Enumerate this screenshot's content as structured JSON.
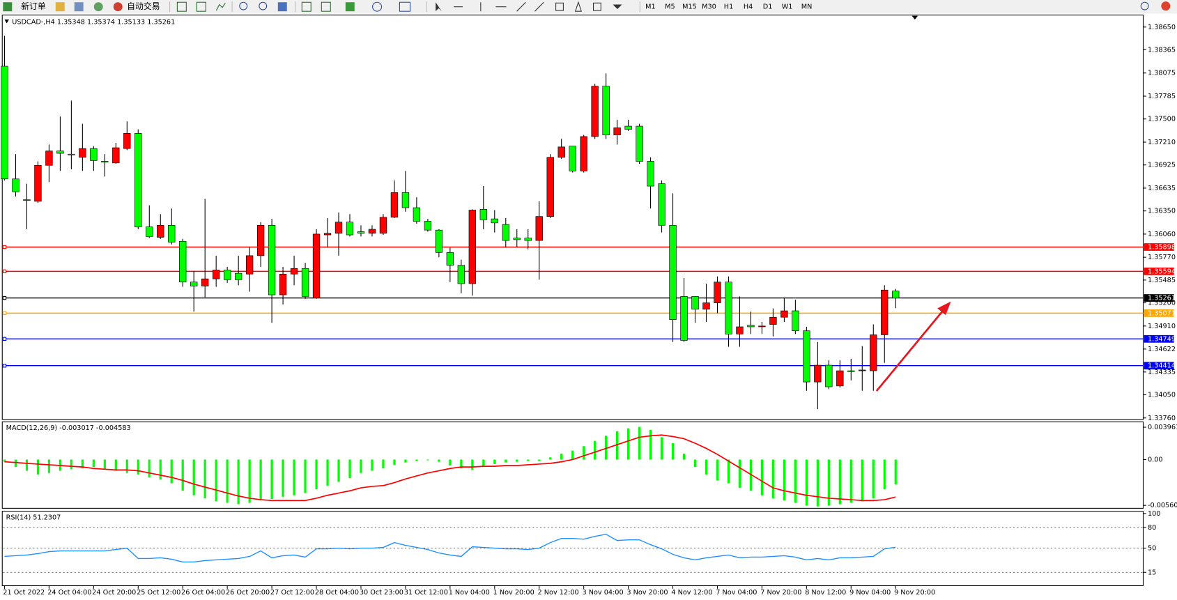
{
  "toolbar": {
    "buttons": [
      "新订单",
      "自动交易"
    ],
    "timeframes": [
      "M1",
      "M5",
      "M15",
      "M30",
      "H1",
      "H4",
      "D1",
      "W1",
      "MN"
    ]
  },
  "chart_data": [
    {
      "type": "candlestick",
      "title": "USDCAD-,H4 1.35348 1.35374 1.35133 1.35261",
      "categories": [
        "21 Oct 2022",
        null,
        null,
        null,
        "24 Oct 04:00",
        null,
        null,
        null,
        "24 Oct 20:00",
        null,
        null,
        null,
        "25 Oct 12:00",
        null,
        null,
        null,
        "26 Oct 04:00",
        null,
        null,
        null,
        "26 Oct 20:00",
        null,
        null,
        null,
        "27 Oct 12:00",
        null,
        null,
        null,
        "28 Oct 04:00",
        null,
        null,
        null,
        "30 Oct 23:00",
        null,
        null,
        null,
        "31 Oct 12:00",
        null,
        null,
        null,
        "1 Nov 04:00",
        null,
        null,
        null,
        "1 Nov 20:00",
        null,
        null,
        null,
        "2 Nov 12:00",
        null,
        null,
        null,
        "3 Nov 04:00",
        null,
        null,
        null,
        "3 Nov 20:00",
        null,
        null,
        null,
        "4 Nov 12:00",
        null,
        null,
        null,
        "7 Nov 04:00",
        null,
        null,
        null,
        "7 Nov 20:00",
        null,
        null,
        null,
        "8 Nov 12:00",
        null,
        null,
        null,
        "9 Nov 04:00",
        null,
        null,
        null,
        "9 Nov 20:00"
      ],
      "open": [
        1.3816,
        1.3675,
        1.3649,
        1.3647,
        1.3692,
        1.371,
        1.3706,
        1.3702,
        1.3713,
        1.3697,
        1.3695,
        1.3713,
        1.3732,
        1.3615,
        1.3602,
        1.3617,
        1.3597,
        1.3546,
        1.3541,
        1.355,
        1.3561,
        1.3557,
        1.3556,
        1.3579,
        1.3617,
        1.353,
        1.3556,
        1.3563,
        1.3526,
        1.3605,
        1.3607,
        1.3621,
        1.3609,
        1.3607,
        1.3607,
        1.3627,
        1.3658,
        1.3639,
        1.3622,
        1.3611,
        1.3583,
        1.3567,
        1.3544,
        1.3637,
        1.3625,
        1.3618,
        1.3601,
        1.3601,
        1.3598,
        1.3628,
        1.3702,
        1.3716,
        1.3685,
        1.3728,
        1.3791,
        1.373,
        1.3741,
        1.3741,
        1.3697,
        1.3669,
        1.3617,
        1.3528,
        1.3528,
        1.3512,
        1.352,
        1.3546,
        1.3481,
        1.3492,
        1.349,
        1.3493,
        1.3502,
        1.351,
        1.3485,
        1.3421,
        1.3442,
        1.3416,
        1.3435,
        1.3435,
        1.3435,
        1.348,
        1.35348
      ],
      "high": [
        1.3854,
        1.3706,
        1.3669,
        1.3697,
        1.3718,
        1.3753,
        1.3773,
        1.3744,
        1.3716,
        1.3706,
        1.372,
        1.3747,
        1.3737,
        1.3642,
        1.3631,
        1.3638,
        1.36,
        1.356,
        1.365,
        1.3579,
        1.3565,
        1.3579,
        1.359,
        1.3621,
        1.3625,
        1.3565,
        1.3579,
        1.357,
        1.3612,
        1.3626,
        1.3633,
        1.3631,
        1.3617,
        1.3617,
        1.3631,
        1.3673,
        1.3685,
        1.3652,
        1.3625,
        1.3612,
        1.3589,
        1.3574,
        1.3637,
        1.3666,
        1.3636,
        1.3626,
        1.3612,
        1.3612,
        1.3647,
        1.3706,
        1.3725,
        1.3716,
        1.373,
        1.3794,
        1.3807,
        1.3749,
        1.3749,
        1.3744,
        1.3702,
        1.3673,
        1.3657,
        1.3551,
        1.3528,
        1.3544,
        1.3553,
        1.3553,
        1.3528,
        1.3509,
        1.3496,
        1.3513,
        1.3526,
        1.3524,
        1.349,
        1.3471,
        1.3448,
        1.3448,
        1.345,
        1.3466,
        1.3493,
        1.3542,
        1.35374
      ],
      "low": [
        1.3673,
        1.3653,
        1.3612,
        1.3645,
        1.3671,
        1.3685,
        1.3687,
        1.3685,
        1.3685,
        1.3678,
        1.3694,
        1.3711,
        1.3612,
        1.3601,
        1.36,
        1.3593,
        1.354,
        1.3509,
        1.3527,
        1.354,
        1.3545,
        1.3542,
        1.3534,
        1.3565,
        1.3495,
        1.3518,
        1.3542,
        1.3525,
        1.3525,
        1.3589,
        1.3579,
        1.3603,
        1.3603,
        1.3603,
        1.3605,
        1.3626,
        1.3634,
        1.3619,
        1.3609,
        1.3577,
        1.3546,
        1.3532,
        1.3529,
        1.3612,
        1.3608,
        1.3589,
        1.359,
        1.3587,
        1.3549,
        1.3626,
        1.37,
        1.3683,
        1.3683,
        1.3725,
        1.3725,
        1.3718,
        1.3735,
        1.3694,
        1.3638,
        1.3608,
        1.3471,
        1.3471,
        1.3495,
        1.3496,
        1.3507,
        1.3465,
        1.3465,
        1.3481,
        1.3481,
        1.3478,
        1.3496,
        1.3481,
        1.341,
        1.3387,
        1.3412,
        1.3414,
        1.3423,
        1.341,
        1.341,
        1.3445,
        1.35133
      ],
      "close": [
        1.3675,
        1.3659,
        1.3648,
        1.3692,
        1.371,
        1.3707,
        1.3705,
        1.3713,
        1.3698,
        1.3696,
        1.3714,
        1.3732,
        1.3615,
        1.3603,
        1.3617,
        1.3596,
        1.3546,
        1.3541,
        1.355,
        1.3561,
        1.3549,
        1.3549,
        1.3579,
        1.3617,
        1.353,
        1.3556,
        1.3563,
        1.3528,
        1.3606,
        1.3607,
        1.3621,
        1.3605,
        1.3607,
        1.3612,
        1.3627,
        1.3658,
        1.3639,
        1.3622,
        1.3611,
        1.3583,
        1.3567,
        1.3544,
        1.3636,
        1.3624,
        1.362,
        1.3598,
        1.3599,
        1.3598,
        1.3628,
        1.3702,
        1.3715,
        1.3685,
        1.3728,
        1.3791,
        1.373,
        1.3739,
        1.3737,
        1.3697,
        1.3666,
        1.3617,
        1.3499,
        1.3473,
        1.3512,
        1.352,
        1.3546,
        1.3481,
        1.349,
        1.349,
        1.3491,
        1.3502,
        1.351,
        1.3485,
        1.3421,
        1.3442,
        1.3415,
        1.3435,
        1.3434,
        1.3436,
        1.348,
        1.3536,
        1.35261
      ],
      "up_color": "#ff0000",
      "down_color": "#00ff00",
      "ylim": [
        1.3374,
        1.388
      ],
      "yticks": [
        {
          "value": 1.3865,
          "label": "1.38650"
        },
        {
          "value": 1.38365,
          "label": "1.38365"
        },
        {
          "value": 1.38075,
          "label": "1.38075"
        },
        {
          "value": 1.37785,
          "label": "1.37785"
        },
        {
          "value": 1.375,
          "label": "1.37500"
        },
        {
          "value": 1.3721,
          "label": "1.37210"
        },
        {
          "value": 1.36925,
          "label": "1.36925"
        },
        {
          "value": 1.36635,
          "label": "1.36635"
        },
        {
          "value": 1.3635,
          "label": "1.36350"
        },
        {
          "value": 1.3606,
          "label": "1.36060"
        },
        {
          "value": 1.3577,
          "label": "1.35770"
        },
        {
          "value": 1.35485,
          "label": "1.35485"
        },
        {
          "value": 1.352,
          "label": "1.35200"
        },
        {
          "value": 1.3491,
          "label": "1.34910"
        },
        {
          "value": 1.34622,
          "label": "1.34622"
        },
        {
          "value": 1.34335,
          "label": "1.34335"
        },
        {
          "value": 1.3405,
          "label": "1.34050"
        },
        {
          "value": 1.3376,
          "label": "1.33760"
        }
      ],
      "hlines": [
        {
          "value": 1.35898,
          "color": "#ff0000"
        },
        {
          "value": 1.35594,
          "color": "#ff0000"
        },
        {
          "value": 1.35261,
          "color": "#000000"
        },
        {
          "value": 1.35071,
          "color": "#ffa500"
        },
        {
          "value": 1.34749,
          "color": "#0000ff"
        },
        {
          "value": 1.34414,
          "color": "#0000ff"
        }
      ]
    },
    {
      "type": "macd",
      "title": "MACD(12,26,9) -0.003017 -0.004583",
      "histogram": [
        -0.00027,
        -0.00091,
        -0.00137,
        -0.00182,
        -0.00164,
        -0.00137,
        -0.00118,
        -0.00109,
        -0.00091,
        -0.00118,
        -0.00137,
        -0.00164,
        -0.00182,
        -0.00218,
        -0.00246,
        -0.00291,
        -0.00382,
        -0.00437,
        -0.00473,
        -0.0051,
        -0.00528,
        -0.00546,
        -0.00528,
        -0.00501,
        -0.00482,
        -0.00455,
        -0.00437,
        -0.0041,
        -0.00364,
        -0.00319,
        -0.00273,
        -0.00228,
        -0.00164,
        -0.00137,
        -0.00109,
        -0.00064,
        -0.00036,
        -0.00018,
        -9e-05,
        -0.00027,
        -0.00073,
        -0.00109,
        -0.00127,
        -0.00091,
        -0.00055,
        -0.00036,
        -0.00027,
        -0.00018,
        -0.00018,
        0.00027,
        0.00073,
        0.00109,
        0.00164,
        0.00228,
        0.00291,
        0.00346,
        0.00382,
        0.004,
        0.00364,
        0.00273,
        0.002,
        0.00073,
        -0.00091,
        -0.00182,
        -0.00255,
        -0.00291,
        -0.00346,
        -0.00382,
        -0.00437,
        -0.00473,
        -0.00501,
        -0.00528,
        -0.00564,
        -0.00573,
        -0.00564,
        -0.00546,
        -0.00528,
        -0.0051,
        -0.00473,
        -0.00364,
        -0.003017
      ],
      "signal": [
        -0.00027,
        -0.00036,
        -0.00046,
        -0.00055,
        -0.00064,
        -0.00073,
        -0.00082,
        -0.00091,
        -0.00109,
        -0.00118,
        -0.00127,
        -0.00127,
        -0.00137,
        -0.00164,
        -0.00191,
        -0.00218,
        -0.00255,
        -0.003,
        -0.00337,
        -0.00373,
        -0.0041,
        -0.00446,
        -0.00473,
        -0.00491,
        -0.00501,
        -0.00501,
        -0.00501,
        -0.00501,
        -0.00473,
        -0.00437,
        -0.0041,
        -0.00382,
        -0.00346,
        -0.00328,
        -0.00319,
        -0.00282,
        -0.00237,
        -0.002,
        -0.00164,
        -0.00137,
        -0.00109,
        -0.00091,
        -0.00091,
        -0.00082,
        -0.00082,
        -0.00073,
        -0.00073,
        -0.00064,
        -0.00055,
        -0.00046,
        -0.00027,
        0,
        0.00046,
        0.00091,
        0.00137,
        0.00182,
        0.00228,
        0.00273,
        0.00291,
        0.003,
        0.00282,
        0.00255,
        0.002,
        0.00137,
        0.00064,
        -0.00018,
        -0.001,
        -0.00182,
        -0.00264,
        -0.00346,
        -0.00382,
        -0.0041,
        -0.00437,
        -0.00455,
        -0.00473,
        -0.00482,
        -0.00491,
        -0.00501,
        -0.00501,
        -0.00491,
        -0.004583
      ],
      "histogram_color": "#00ff00",
      "signal_color": "#ff0000",
      "ylim": [
        -0.00596,
        0.00462
      ],
      "yticks": [
        0.003961,
        {
          "value": 0,
          "label": "0.00"
        },
        -0.005601
      ]
    },
    {
      "type": "rsi",
      "title": "RSI(14) 51.2307",
      "values": [
        38,
        39,
        40,
        42,
        45,
        46,
        46,
        46,
        46,
        46,
        48,
        50,
        35,
        35,
        36,
        34,
        30,
        30,
        32,
        33,
        34,
        35,
        38,
        46,
        36,
        39,
        40,
        37,
        49,
        49,
        50,
        49,
        50,
        50,
        51,
        58,
        54,
        51,
        48,
        43,
        40,
        38,
        52,
        51,
        50,
        49,
        49,
        48,
        50,
        58,
        64,
        64,
        63,
        67,
        70,
        61,
        62,
        62,
        55,
        49,
        41,
        36,
        33,
        36,
        38,
        40,
        36,
        37,
        37,
        38,
        39,
        37,
        33,
        35,
        33,
        36,
        36,
        37,
        38,
        49,
        51.2307
      ],
      "color": "#1e90ff",
      "ylim": [
        0,
        100
      ],
      "yticks": [
        100,
        80,
        50,
        15
      ]
    }
  ]
}
